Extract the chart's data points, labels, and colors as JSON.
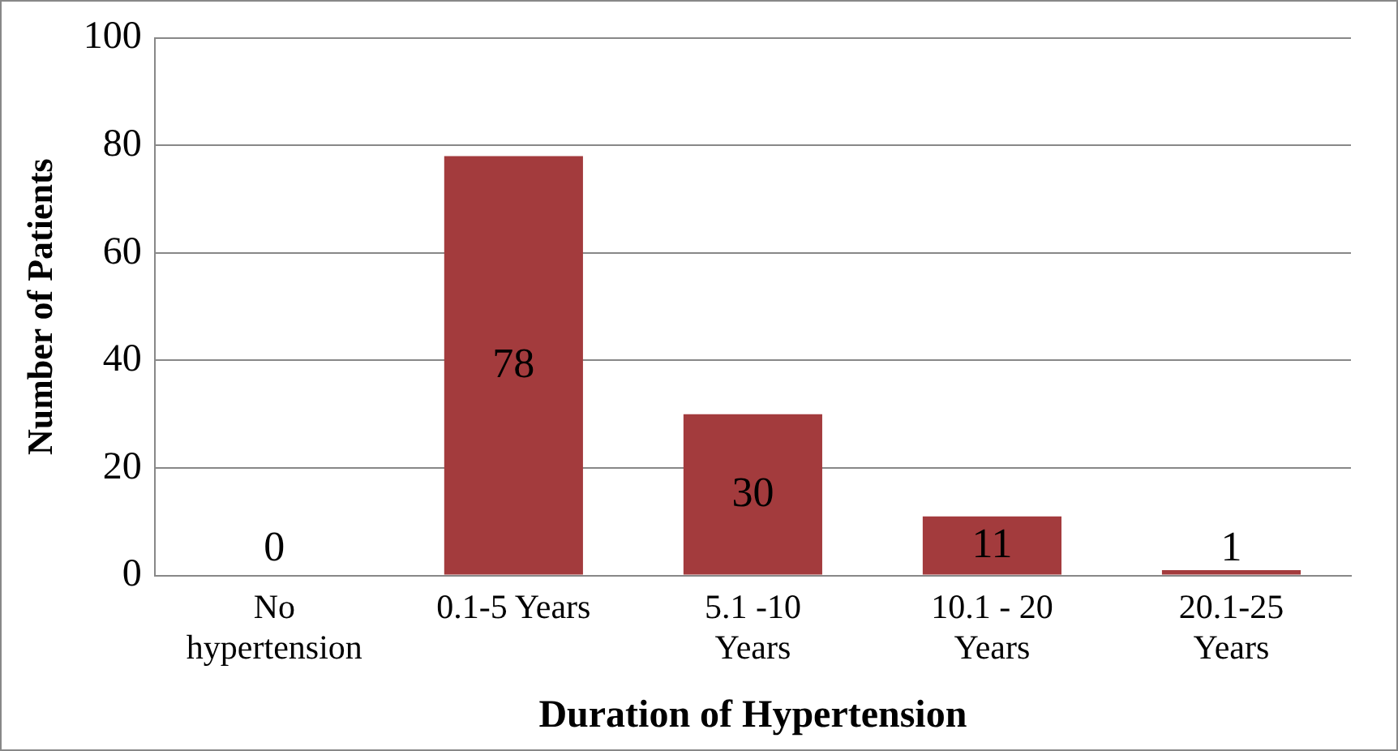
{
  "chart_data": {
    "type": "bar",
    "xlabel": "Duration of Hypertension",
    "ylabel": "Number of Patients",
    "categories": [
      "No hypertension",
      "0.1-5 Years",
      "5.1 -10 Years",
      "10.1 - 20 Years",
      "20.1-25 Years"
    ],
    "values": [
      0,
      78,
      30,
      11,
      1
    ],
    "color": "#a33b3d",
    "ylim": [
      0,
      100
    ],
    "yticks": [
      0,
      20,
      40,
      60,
      80,
      100
    ],
    "grid": "y",
    "data_labels": true,
    "legend": false
  }
}
